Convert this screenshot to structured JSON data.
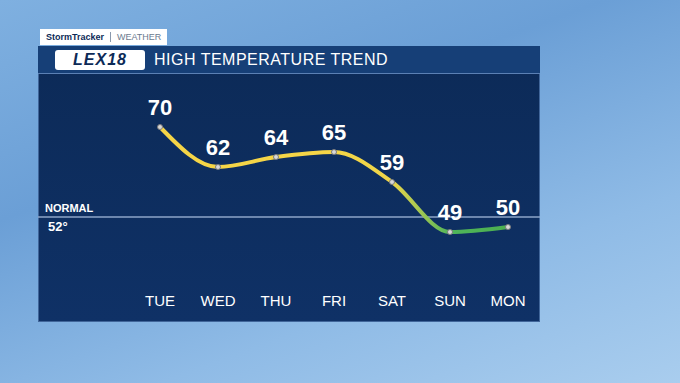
{
  "header": {
    "brand": "StormTracker",
    "section": "WEATHER",
    "logo": "LEX18"
  },
  "chart_data": {
    "type": "line",
    "title": "HIGH TEMPERATURE TREND",
    "categories": [
      "TUE",
      "WED",
      "THU",
      "FRI",
      "SAT",
      "SUN",
      "MON"
    ],
    "values": [
      70,
      62,
      64,
      65,
      59,
      49,
      50
    ],
    "colors": [
      "#f5d547",
      "#f5d547",
      "#f5d547",
      "#f5d547",
      "#eed64a",
      "#4fb55a",
      "#4caf50"
    ],
    "ylim": [
      40,
      75
    ],
    "data_labels": true,
    "tick_labels": "x",
    "annotations": [
      {
        "text": "NORMAL",
        "value": 52,
        "label": "52°"
      }
    ]
  }
}
